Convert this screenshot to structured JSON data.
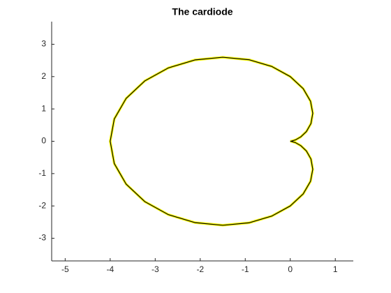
{
  "chart_data": {
    "type": "line",
    "title": "The cardiode",
    "x": [
      0,
      0.03,
      0.1133,
      0.2321,
      0.3584,
      0.4592,
      0.5,
      0.4501,
      0.287,
      0,
      -0.4076,
      -0.918,
      -1.5,
      -2.112,
      -2.7057,
      -3.2321,
      -3.6455,
      -3.9093,
      -4,
      -3.9093,
      -3.6455,
      -3.2321,
      -2.7057,
      -2.112,
      -1.5,
      -0.918,
      -0.4076,
      0,
      0.287,
      0.4501,
      0.5,
      0.4592,
      0.3584,
      0.2321,
      0.1133,
      0.03,
      0
    ],
    "series": [
      {
        "color": "#ffff00",
        "edge_color": "#000000",
        "values": [
          0,
          0.0053,
          0.0412,
          0.134,
          0.3008,
          0.5472,
          0.866,
          1.2366,
          1.6276,
          2,
          2.3116,
          2.5222,
          2.5981,
          2.5168,
          2.2704,
          1.866,
          1.3268,
          0.6891,
          0,
          -0.6891,
          -1.3268,
          -1.866,
          -2.2704,
          -2.5168,
          -2.5981,
          -2.5222,
          -2.3116,
          -2,
          -1.6276,
          -1.2366,
          -0.866,
          -0.5472,
          -0.3008,
          -0.134,
          -0.0412,
          -0.0053,
          0
        ]
      }
    ],
    "xlim": [
      -5.3,
      1.4
    ],
    "ylim": [
      -3.7,
      3.7
    ],
    "xticks": [
      -5,
      -4,
      -3,
      -2,
      -1,
      0,
      1
    ],
    "yticks": [
      -3,
      -2,
      -1,
      0,
      1,
      2,
      3
    ]
  }
}
